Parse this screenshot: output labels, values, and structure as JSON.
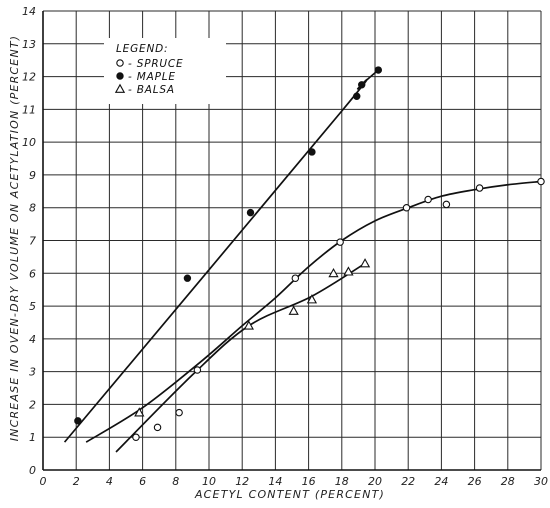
{
  "chart_data": {
    "type": "scatter",
    "xlabel": "ACETYL CONTENT (PERCENT)",
    "ylabel": "INCREASE IN OVEN-DRY VOLUME ON ACETYLATION (PERCENT)",
    "xlim": [
      0,
      30
    ],
    "ylim": [
      0,
      14
    ],
    "xticks": [
      0,
      2,
      4,
      6,
      8,
      10,
      12,
      14,
      16,
      18,
      20,
      22,
      24,
      26,
      28,
      30
    ],
    "yticks": [
      0,
      1,
      2,
      3,
      4,
      5,
      6,
      7,
      8,
      9,
      10,
      11,
      12,
      13,
      14
    ],
    "grid": true,
    "legend": {
      "title": "LEGEND:",
      "placement": "top-left",
      "entries": [
        "SPRUCE",
        "MAPLE",
        "BALSA"
      ]
    },
    "series": [
      {
        "name": "SPRUCE",
        "marker": "open-circle",
        "points": [
          [
            5.6,
            1.0
          ],
          [
            6.9,
            1.3
          ],
          [
            8.2,
            1.75
          ],
          [
            9.3,
            3.05
          ],
          [
            15.2,
            5.85
          ],
          [
            17.9,
            6.95
          ],
          [
            21.9,
            8.0
          ],
          [
            23.2,
            8.25
          ],
          [
            24.3,
            8.1
          ],
          [
            26.3,
            8.6
          ],
          [
            30.0,
            8.8
          ]
        ],
        "fit_curve": [
          [
            2.6,
            0.85
          ],
          [
            6.0,
            1.9
          ],
          [
            9.5,
            3.3
          ],
          [
            12.0,
            4.4
          ],
          [
            14.0,
            5.25
          ],
          [
            16.0,
            6.2
          ],
          [
            18.0,
            7.0
          ],
          [
            20.0,
            7.6
          ],
          [
            22.0,
            8.0
          ],
          [
            24.0,
            8.35
          ],
          [
            26.0,
            8.55
          ],
          [
            28.0,
            8.7
          ],
          [
            30.0,
            8.8
          ]
        ]
      },
      {
        "name": "MAPLE",
        "marker": "filled-circle",
        "points": [
          [
            2.1,
            1.5
          ],
          [
            8.7,
            5.85
          ],
          [
            12.5,
            7.85
          ],
          [
            16.2,
            9.7
          ],
          [
            18.9,
            11.4
          ],
          [
            19.2,
            11.75
          ],
          [
            20.2,
            12.2
          ]
        ],
        "fit_curve": [
          [
            1.3,
            0.85
          ],
          [
            18.0,
            10.95
          ],
          [
            19.0,
            11.65
          ],
          [
            20.2,
            12.2
          ]
        ]
      },
      {
        "name": "BALSA",
        "marker": "open-triangle",
        "points": [
          [
            5.8,
            1.75
          ],
          [
            12.4,
            4.4
          ],
          [
            15.1,
            4.85
          ],
          [
            16.2,
            5.2
          ],
          [
            17.5,
            6.0
          ],
          [
            18.4,
            6.05
          ],
          [
            19.4,
            6.3
          ]
        ],
        "fit_curve": [
          [
            4.4,
            0.55
          ],
          [
            9.0,
            2.9
          ],
          [
            12.4,
            4.4
          ],
          [
            16.2,
            5.3
          ],
          [
            19.4,
            6.3
          ]
        ]
      }
    ]
  }
}
